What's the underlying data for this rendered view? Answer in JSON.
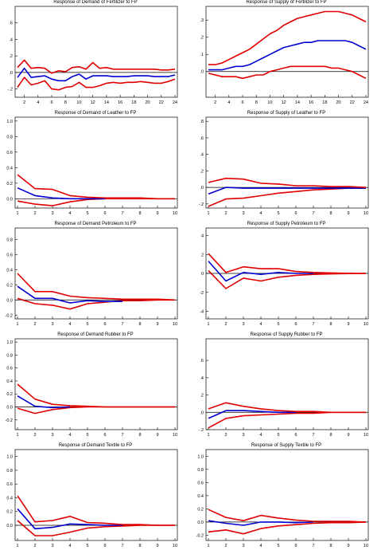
{
  "chart_data": [
    {
      "type": "line",
      "title": "Response of Demand of Fertilizer to FP",
      "x_start": 1,
      "x_end": 24,
      "xticks": [
        2,
        4,
        6,
        8,
        10,
        12,
        14,
        16,
        18,
        20,
        22,
        24
      ],
      "ylim": [
        -0.3,
        0.8
      ],
      "yticks": [
        ".6",
        ".4",
        ".2",
        ".0",
        "-.2"
      ],
      "ytick_values": [
        0.6,
        0.4,
        0.2,
        0.0,
        -0.2
      ],
      "series": [
        {
          "role": "lower band",
          "color": "#e00000",
          "values": [
            -0.18,
            -0.06,
            -0.15,
            -0.13,
            -0.1,
            -0.2,
            -0.21,
            -0.18,
            -0.17,
            -0.12,
            -0.18,
            -0.18,
            -0.16,
            -0.13,
            -0.12,
            -0.13,
            -0.12,
            -0.12,
            -0.11,
            -0.12,
            -0.13,
            -0.13,
            -0.11,
            -0.08
          ]
        },
        {
          "role": "response",
          "color": "#0000d0",
          "values": [
            -0.06,
            0.05,
            -0.06,
            -0.05,
            -0.04,
            -0.08,
            -0.1,
            -0.1,
            -0.05,
            -0.02,
            -0.08,
            -0.04,
            -0.04,
            -0.04,
            -0.05,
            -0.05,
            -0.05,
            -0.04,
            -0.04,
            -0.04,
            -0.05,
            -0.05,
            -0.05,
            -0.03
          ]
        },
        {
          "role": "upper band",
          "color": "#e00000",
          "values": [
            0.06,
            0.15,
            0.05,
            0.06,
            0.05,
            -0.01,
            0.02,
            0.01,
            0.06,
            0.07,
            0.04,
            0.12,
            0.05,
            0.06,
            0.04,
            0.04,
            0.04,
            0.04,
            0.04,
            0.04,
            0.04,
            0.03,
            0.03,
            0.04
          ]
        }
      ]
    },
    {
      "type": "line",
      "title": "Response of Supply of Fertilizer to FP",
      "x_start": 1,
      "x_end": 24,
      "xticks": [
        2,
        4,
        6,
        8,
        10,
        12,
        14,
        16,
        18,
        20,
        22,
        24
      ],
      "ylim": [
        -0.15,
        0.38
      ],
      "yticks": [
        ".3",
        ".2",
        ".1",
        ".0"
      ],
      "ytick_values": [
        0.3,
        0.2,
        0.1,
        0.0
      ],
      "series": [
        {
          "role": "lower band",
          "color": "#e00000",
          "values": [
            -0.01,
            -0.02,
            -0.03,
            -0.03,
            -0.03,
            -0.04,
            -0.03,
            -0.02,
            -0.02,
            0.0,
            0.01,
            0.02,
            0.03,
            0.03,
            0.03,
            0.03,
            0.03,
            0.03,
            0.02,
            0.02,
            0.01,
            0.0,
            -0.02,
            -0.04
          ]
        },
        {
          "role": "response",
          "color": "#0000d0",
          "values": [
            0.01,
            0.01,
            0.01,
            0.02,
            0.03,
            0.03,
            0.04,
            0.06,
            0.08,
            0.1,
            0.12,
            0.14,
            0.15,
            0.16,
            0.17,
            0.17,
            0.18,
            0.18,
            0.18,
            0.18,
            0.18,
            0.17,
            0.15,
            0.13
          ]
        },
        {
          "role": "upper band",
          "color": "#e00000",
          "values": [
            0.04,
            0.04,
            0.05,
            0.07,
            0.09,
            0.11,
            0.13,
            0.16,
            0.19,
            0.22,
            0.24,
            0.27,
            0.29,
            0.31,
            0.32,
            0.33,
            0.34,
            0.35,
            0.35,
            0.35,
            0.34,
            0.33,
            0.31,
            0.29
          ]
        }
      ]
    },
    {
      "type": "line",
      "title": "Response of Demand of Leather to FP",
      "x_start": 1,
      "x_end": 10,
      "xticks": [
        1,
        2,
        3,
        4,
        5,
        6,
        7,
        8,
        9,
        10
      ],
      "ylim": [
        -0.12,
        1.05
      ],
      "yticks": [
        "1.0",
        "0.8",
        "0.6",
        "0.4",
        "0.2",
        "0.0"
      ],
      "ytick_values": [
        1.0,
        0.8,
        0.6,
        0.4,
        0.2,
        0.0
      ],
      "series": [
        {
          "role": "lower band",
          "color": "#e00000",
          "values": [
            -0.03,
            -0.07,
            -0.09,
            -0.04,
            -0.01,
            0.0,
            0.0,
            0.0,
            0.0,
            0.0
          ]
        },
        {
          "role": "response",
          "color": "#0000d0",
          "values": [
            0.14,
            0.04,
            0.01,
            0.0,
            0.0,
            0.0
          ]
        },
        {
          "role": "upper band",
          "color": "#e00000",
          "values": [
            0.31,
            0.13,
            0.12,
            0.04,
            0.02,
            0.01,
            0.01,
            0.01,
            0.0,
            0.0
          ]
        }
      ]
    },
    {
      "type": "line",
      "title": "Response of Supply of Leather to FP",
      "x_start": 1,
      "x_end": 10,
      "xticks": [
        1,
        2,
        3,
        4,
        5,
        6,
        7,
        8,
        9,
        10
      ],
      "ylim": [
        -0.25,
        0.85
      ],
      "yticks": [
        ".8",
        ".6",
        ".4",
        ".2",
        ".0",
        "-.2"
      ],
      "ytick_values": [
        0.8,
        0.6,
        0.4,
        0.2,
        0.0,
        -0.2
      ],
      "series": [
        {
          "role": "lower band",
          "color": "#e00000",
          "values": [
            -0.23,
            -0.14,
            -0.13,
            -0.1,
            -0.07,
            -0.05,
            -0.03,
            -0.02,
            -0.01,
            -0.01
          ]
        },
        {
          "role": "response",
          "color": "#0000d0",
          "values": [
            -0.08,
            0.0,
            -0.01,
            -0.01,
            -0.01,
            -0.01,
            -0.01,
            -0.01,
            -0.01,
            -0.01
          ]
        },
        {
          "role": "upper band",
          "color": "#e00000",
          "values": [
            0.06,
            0.11,
            0.1,
            0.05,
            0.04,
            0.02,
            0.02,
            0.01,
            0.01,
            0.0
          ]
        }
      ]
    },
    {
      "type": "line",
      "title": "Response of Demand Petroleum to FP",
      "x_start": 1,
      "x_end": 10,
      "xticks": [
        1,
        2,
        3,
        4,
        5,
        6,
        7,
        8,
        9,
        10
      ],
      "ylim": [
        -0.25,
        0.95
      ],
      "yticks": [
        "0.8",
        "0.6",
        "0.4",
        "0.2",
        "0.0",
        "-0.2"
      ],
      "ytick_values": [
        0.8,
        0.6,
        0.4,
        0.2,
        0.0,
        -0.2
      ],
      "series": [
        {
          "role": "lower band",
          "color": "#e00000",
          "values": [
            0.02,
            -0.05,
            -0.07,
            -0.12,
            -0.05,
            -0.03,
            -0.01,
            -0.01,
            0.0,
            0.0
          ]
        },
        {
          "role": "response",
          "color": "#0000d0",
          "values": [
            0.18,
            0.02,
            0.02,
            -0.04,
            -0.01,
            -0.02,
            -0.02
          ]
        },
        {
          "role": "upper band",
          "color": "#e00000",
          "values": [
            0.35,
            0.11,
            0.11,
            0.05,
            0.03,
            0.02,
            0.01,
            0.01,
            0.01,
            0.0
          ]
        }
      ]
    },
    {
      "type": "line",
      "title": "Response of Supply Petroleum to FP",
      "x_start": 1,
      "x_end": 10,
      "xticks": [
        1,
        2,
        3,
        4,
        5,
        6,
        7,
        8,
        9,
        10
      ],
      "ylim": [
        -4.8,
        4.8
      ],
      "yticks": [
        "4",
        "2",
        "0",
        "-2",
        "-4"
      ],
      "ytick_values": [
        4,
        2,
        0,
        -2,
        -4
      ],
      "series": [
        {
          "role": "lower band",
          "color": "#e00000",
          "values": [
            0.3,
            -1.6,
            -0.5,
            -0.8,
            -0.4,
            -0.2,
            -0.1,
            -0.05,
            -0.02,
            0.0
          ]
        },
        {
          "role": "response",
          "color": "#0000d0",
          "values": [
            1.3,
            -0.8,
            0.1,
            -0.1,
            0.1,
            0.0,
            0.0
          ]
        },
        {
          "role": "upper band",
          "color": "#e00000",
          "values": [
            2.1,
            0.1,
            0.7,
            0.5,
            0.5,
            0.2,
            0.1,
            0.05,
            0.02,
            0.0
          ]
        }
      ]
    },
    {
      "type": "line",
      "title": "Response of Demand Rubber to FP",
      "x_start": 1,
      "x_end": 10,
      "xticks": [
        1,
        2,
        3,
        4,
        5,
        6,
        7,
        8,
        9,
        10
      ],
      "ylim": [
        -0.35,
        1.05
      ],
      "yticks": [
        "1.0",
        "0.8",
        "0.6",
        "0.4",
        "0.2",
        "0.0",
        "-0.2"
      ],
      "ytick_values": [
        1.0,
        0.8,
        0.6,
        0.4,
        0.2,
        0.0,
        -0.2
      ],
      "series": [
        {
          "role": "lower band",
          "color": "#e00000",
          "values": [
            -0.02,
            -0.1,
            -0.04,
            -0.01,
            0.0,
            0.0,
            0.0,
            0.0,
            0.0,
            0.0
          ]
        },
        {
          "role": "response",
          "color": "#0000d0",
          "values": [
            0.17,
            0.01,
            -0.01,
            0.0
          ]
        },
        {
          "role": "upper band",
          "color": "#e00000",
          "values": [
            0.35,
            0.12,
            0.04,
            0.02,
            0.01,
            0.0,
            0.0,
            0.0,
            0.0,
            0.0
          ]
        }
      ]
    },
    {
      "type": "line",
      "title": "Response of Supply Rubber to FP",
      "x_start": 1,
      "x_end": 10,
      "xticks": [
        1,
        2,
        3,
        4,
        5,
        6,
        7,
        8,
        9,
        10
      ],
      "ylim": [
        -0.2,
        0.85
      ],
      "yticks": [
        ".6",
        ".4",
        ".2",
        ".0",
        "-.2"
      ],
      "ytick_values": [
        0.6,
        0.4,
        0.2,
        0.0,
        -0.2
      ],
      "series": [
        {
          "role": "lower band",
          "color": "#e00000",
          "values": [
            -0.18,
            -0.07,
            -0.04,
            -0.03,
            -0.02,
            -0.01,
            -0.01,
            0.0,
            0.0,
            0.0
          ]
        },
        {
          "role": "response",
          "color": "#0000d0",
          "values": [
            -0.07,
            0.02,
            0.02,
            0.01,
            0.0,
            0.0
          ]
        },
        {
          "role": "upper band",
          "color": "#e00000",
          "values": [
            0.04,
            0.11,
            0.07,
            0.04,
            0.02,
            0.01,
            0.01,
            0.0,
            0.0,
            0.0
          ]
        }
      ]
    },
    {
      "type": "line",
      "title": "Response of Demand Textile to FP",
      "x_start": 1,
      "x_end": 10,
      "xticks": [
        1,
        2,
        3,
        4,
        5,
        6,
        7,
        8,
        9,
        10
      ],
      "ylim": [
        -0.22,
        1.1
      ],
      "yticks": [
        "1.0",
        "0.8",
        "0.6",
        "0.4",
        "0.2",
        "0.0"
      ],
      "ytick_values": [
        1.0,
        0.8,
        0.6,
        0.4,
        0.2,
        0.0
      ],
      "series": [
        {
          "role": "lower band",
          "color": "#e00000",
          "values": [
            0.07,
            -0.15,
            -0.15,
            -0.1,
            -0.04,
            -0.02,
            -0.01,
            0.0,
            0.0,
            0.0
          ]
        },
        {
          "role": "response",
          "color": "#0000d0",
          "values": [
            0.24,
            -0.05,
            -0.03,
            0.02,
            0.01,
            0.0,
            0.0
          ]
        },
        {
          "role": "upper band",
          "color": "#e00000",
          "values": [
            0.43,
            0.05,
            0.07,
            0.13,
            0.04,
            0.03,
            0.01,
            0.01,
            0.0,
            0.0
          ]
        }
      ]
    },
    {
      "type": "line",
      "title": "Response of Supply Textile to FP",
      "x_start": 1,
      "x_end": 10,
      "xticks": [
        1,
        2,
        3,
        4,
        5,
        6,
        7,
        8,
        9,
        10
      ],
      "ylim": [
        -0.28,
        1.1
      ],
      "yticks": [
        "1.0",
        "0.8",
        "0.6",
        "0.4",
        "0.2",
        "0.0",
        "-0.2"
      ],
      "ytick_values": [
        1.0,
        0.8,
        0.6,
        0.4,
        0.2,
        0.0,
        -0.2
      ],
      "series": [
        {
          "role": "lower band",
          "color": "#e00000",
          "values": [
            -0.15,
            -0.12,
            -0.18,
            -0.1,
            -0.06,
            -0.04,
            -0.02,
            -0.01,
            -0.01,
            0.0
          ]
        },
        {
          "role": "response",
          "color": "#0000d0",
          "values": [
            0.02,
            -0.02,
            -0.05,
            0.0,
            0.0,
            -0.01,
            0.0
          ]
        },
        {
          "role": "upper band",
          "color": "#e00000",
          "values": [
            0.19,
            0.07,
            0.02,
            0.1,
            0.06,
            0.03,
            0.01,
            0.01,
            0.01,
            0.0
          ]
        }
      ]
    }
  ]
}
